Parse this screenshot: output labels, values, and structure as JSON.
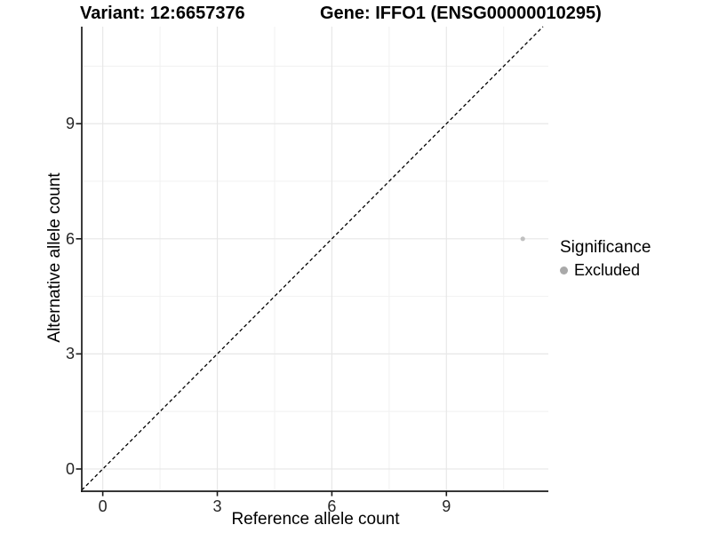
{
  "chart_data": {
    "type": "scatter",
    "titles": [
      "Variant: 12:6657376",
      "Gene: IFFO1 (ENSG00000010295)"
    ],
    "xlabel": "Reference allele count",
    "ylabel": "Alternative allele count",
    "xlim": [
      -0.55,
      11.67
    ],
    "ylim": [
      -0.58,
      11.53
    ],
    "x_ticks": [
      0,
      3,
      6,
      9
    ],
    "y_ticks": [
      0,
      3,
      6,
      9
    ],
    "x_minor_gridlines": [
      1.5,
      4.5,
      7.5,
      10.5
    ],
    "y_minor_gridlines": [
      1.5,
      4.5,
      7.5,
      10.5
    ],
    "grid": "on",
    "identity_line": {
      "slope": 1,
      "intercept": 0,
      "linetype": "dashed",
      "color": "#000000"
    },
    "points": [
      {
        "x": 11,
        "y": 6,
        "series": "Excluded",
        "color": "#c0c0c0",
        "radius_px": 2.6
      }
    ],
    "legend": {
      "title": "Significance",
      "position": "right",
      "items": [
        {
          "label": "Excluded",
          "key_color": "#a9a9a9",
          "marker": "circle"
        }
      ]
    },
    "colors": {
      "background": "#ffffff",
      "grid_major": "#e7e7e7",
      "grid_minor": "#f1f1f1",
      "axis_line": "#1a1a1a",
      "tick_text": "#262626"
    }
  }
}
